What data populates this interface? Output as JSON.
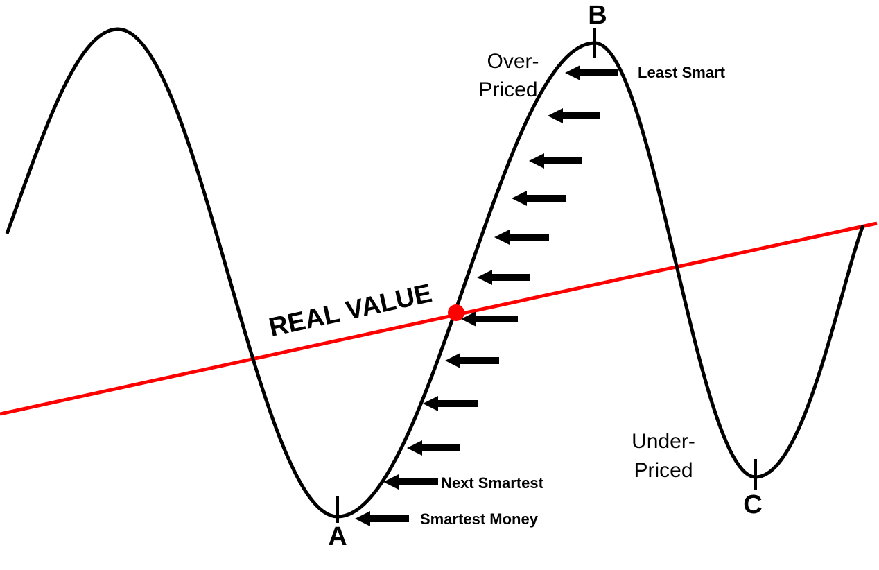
{
  "real_value": "REAL VALUE",
  "zones": {
    "over": [
      "Over-",
      "Priced"
    ],
    "under": [
      "Under-",
      "Priced"
    ]
  },
  "points": [
    "A",
    "B",
    "C"
  ],
  "investors": [
    "Least Smart",
    "Next Smartest",
    "Smartest Money"
  ]
}
